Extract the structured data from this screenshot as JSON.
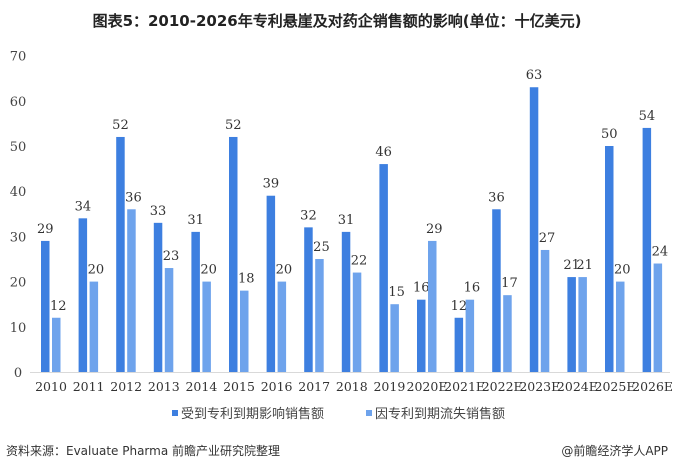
{
  "chart_data": {
    "type": "bar",
    "title": "图表5：2010-2026年专利悬崖及对药企销售额的影响(单位：十亿美元)",
    "xlabel": "",
    "ylabel": "",
    "ylim": [
      0,
      70
    ],
    "yticks": [
      0,
      10,
      20,
      30,
      40,
      50,
      60,
      70
    ],
    "grid": false,
    "legend_position": "bottom",
    "categories": [
      "2010",
      "2011",
      "2012",
      "2013",
      "2014",
      "2015",
      "2016",
      "2017",
      "2018",
      "2019",
      "2020E",
      "2021E",
      "2022E",
      "2023E",
      "2024E",
      "2025E",
      "2026E"
    ],
    "series": [
      {
        "name": "受到专利到期影响销售额",
        "color": "#3d7fe0",
        "values": [
          29,
          34,
          52,
          33,
          31,
          52,
          39,
          32,
          31,
          46,
          16,
          12,
          36,
          63,
          21,
          50,
          54
        ]
      },
      {
        "name": "因专利到期流失销售额",
        "color": "#6ea3ec",
        "values": [
          12,
          20,
          36,
          23,
          20,
          18,
          20,
          25,
          22,
          15,
          29,
          16,
          17,
          27,
          21,
          20,
          24
        ]
      }
    ]
  },
  "footer": {
    "source": "资料来源：Evaluate Pharma 前瞻产业研究院整理",
    "credit": "@前瞻经济学人APP"
  }
}
